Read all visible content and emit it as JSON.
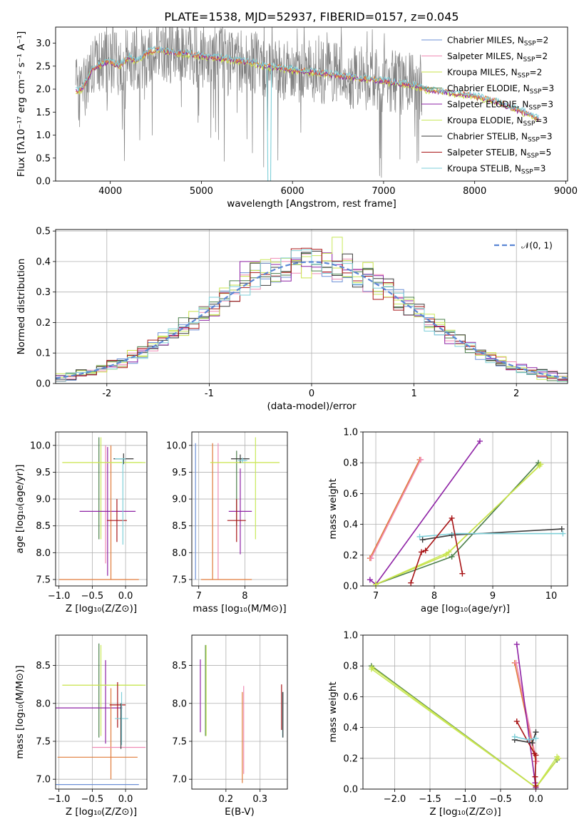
{
  "figure_title": "PLATE=1538, MJD=52937, FIBERID=0157, z=0.045",
  "colors": {
    "chabrier_miles": "#6b8fd6",
    "salpeter_miles": "#f08bb5",
    "kroupa_miles": "#c9e34a",
    "chabrier_elodie": "#4a7f4a",
    "salpeter_elodie": "#8e22a5",
    "kroupa_elodie": "#c8e85a",
    "chabrier_stelib": "#3a3a3a",
    "salpeter_stelib": "#a81416",
    "kroupa_stelib": "#7ecfd8",
    "data": "#808080",
    "orange": "#e07b3a",
    "normal": "#5b86d4"
  },
  "chart_data": [
    {
      "type": "line",
      "id": "spectrum",
      "title": "PLATE=1538, MJD=52937, FIBERID=0157, z=0.045",
      "xlabel": "wavelength [Angstrom, rest frame]",
      "ylabel": "Flux [fλ10⁻¹⁷ erg cm⁻² s⁻¹ A⁻¹]",
      "xlim": [
        3400,
        9020
      ],
      "ylim": [
        0,
        3.35
      ],
      "xticks": [
        4000,
        5000,
        6000,
        7000,
        8000,
        9000
      ],
      "yticks": [
        0.0,
        0.5,
        1.0,
        1.5,
        2.0,
        2.5,
        3.0
      ],
      "legend": [
        {
          "label": "Chabrier MILES, N",
          "sub": "SSP",
          "suffix": "=2",
          "color_key": "chabrier_miles"
        },
        {
          "label": "Salpeter MILES, N",
          "sub": "SSP",
          "suffix": "=2",
          "color_key": "salpeter_miles"
        },
        {
          "label": "Kroupa MILES, N",
          "sub": "SSP",
          "suffix": "=2",
          "color_key": "kroupa_miles"
        },
        {
          "label": "Chabrier ELODIE, N",
          "sub": "SSP",
          "suffix": "=3",
          "color_key": "chabrier_elodie"
        },
        {
          "label": "Salpeter ELODIE, N",
          "sub": "SSP",
          "suffix": "=3",
          "color_key": "salpeter_elodie"
        },
        {
          "label": "Kroupa ELODIE, N",
          "sub": "SSP",
          "suffix": "=3",
          "color_key": "kroupa_elodie"
        },
        {
          "label": "Chabrier STELIB, N",
          "sub": "SSP",
          "suffix": "=3",
          "color_key": "chabrier_stelib"
        },
        {
          "label": "Salpeter STELIB, N",
          "sub": "SSP",
          "suffix": "=5",
          "color_key": "salpeter_stelib"
        },
        {
          "label": "Kroupa STELIB, N",
          "sub": "SSP",
          "suffix": "=3",
          "color_key": "kroupa_stelib"
        }
      ],
      "legend_placement": "upper right",
      "model_curve": {
        "x": [
          3620,
          3700,
          3800,
          3900,
          4000,
          4100,
          4200,
          4300,
          4400,
          4500,
          4700,
          4900,
          5100,
          5300,
          5500,
          5700,
          5900,
          6100,
          6300,
          6500,
          6700,
          6900,
          7100,
          7300,
          7450,
          7600,
          7800,
          8000,
          8200,
          8400,
          8600,
          8700
        ],
        "y": [
          1.95,
          2.02,
          2.45,
          2.55,
          2.6,
          2.5,
          2.7,
          2.6,
          2.8,
          2.85,
          2.8,
          2.75,
          2.7,
          2.65,
          2.6,
          2.5,
          2.45,
          2.4,
          2.35,
          2.3,
          2.25,
          2.2,
          2.15,
          2.1,
          2.0,
          1.95,
          1.9,
          1.85,
          1.75,
          1.6,
          1.45,
          1.35
        ]
      }
    },
    {
      "type": "histogram",
      "id": "residuals",
      "xlabel": "(data-model)/error",
      "ylabel": "Normed distribution",
      "xlim": [
        -2.5,
        2.5
      ],
      "ylim": [
        0,
        0.505
      ],
      "xticks": [
        -2,
        -1,
        0,
        1,
        2
      ],
      "yticks": [
        0.0,
        0.1,
        0.2,
        0.3,
        0.4,
        0.5
      ],
      "grid": true,
      "legend": [
        {
          "label": "𝒩(0, 1)",
          "color_key": "normal"
        }
      ],
      "legend_placement": "upper right"
    },
    {
      "type": "scatter",
      "id": "age_vs_z",
      "xlabel": "Z [log₁₀(Z/Z⊙)]",
      "ylabel": "age  [log₁₀(age/yr)]",
      "xlim": [
        -1.05,
        0.32
      ],
      "ylim": [
        7.38,
        10.25
      ],
      "xticks": [
        -1.0,
        -0.5,
        0.0
      ],
      "yticks": [
        7.5,
        8.0,
        8.5,
        9.0,
        9.5,
        10.0
      ],
      "grid": true,
      "errorbars": [
        {
          "x": -0.4,
          "y": 9.2,
          "xerr": 0.0,
          "yerr": 0.95,
          "color_key": "chabrier_elodie"
        },
        {
          "x": -0.37,
          "y": 9.2,
          "xerr": 0.0,
          "yerr": 0.95,
          "color_key": "kroupa_elodie"
        },
        {
          "x": -0.3,
          "y": 8.9,
          "xerr": 0.0,
          "yerr": 1.1,
          "color_key": "salpeter_miles"
        },
        {
          "x": -0.27,
          "y": 8.77,
          "xerr": 0.42,
          "yerr": 1.2,
          "color_key": "salpeter_elodie"
        },
        {
          "x": -0.22,
          "y": 8.75,
          "xerr": 0.0,
          "yerr": 1.25,
          "color_key": "orange"
        },
        {
          "x": -0.35,
          "y": 9.68,
          "xerr": 0.6,
          "yerr": 0.0,
          "color_key": "kroupa_miles"
        },
        {
          "x": -0.05,
          "y": 9.68,
          "xerr": 0.35,
          "yerr": 0.0,
          "color_key": "kroupa_elodie"
        },
        {
          "x": -0.03,
          "y": 9.75,
          "xerr": 0.15,
          "yerr": 0.1,
          "color_key": "chabrier_stelib"
        },
        {
          "x": -0.13,
          "y": 8.6,
          "xerr": 0.15,
          "yerr": 0.4,
          "color_key": "salpeter_stelib"
        },
        {
          "x": -0.08,
          "y": 9.75,
          "xerr": 0.08,
          "yerr": 0.0,
          "color_key": "kroupa_stelib"
        },
        {
          "x": -0.04,
          "y": 8.95,
          "xerr": 0.0,
          "yerr": 0.8,
          "color_key": "kroupa_stelib"
        },
        {
          "x": -0.4,
          "y": 7.5,
          "xerr": 0.6,
          "yerr": 0.0,
          "color_key": "orange"
        }
      ]
    },
    {
      "type": "scatter",
      "id": "age_vs_mass",
      "xlabel": "mass [log₁₀(M/M⊙)]",
      "ylabel": "",
      "xlim": [
        6.85,
        8.92
      ],
      "ylim": [
        7.38,
        10.25
      ],
      "xticks": [
        7,
        8
      ],
      "yticks": [
        7.5,
        8.0,
        8.5,
        9.0,
        9.5,
        10.0
      ],
      "grid": true,
      "errorbars": [
        {
          "x": 6.93,
          "y": 8.77,
          "xerr": 0.0,
          "yerr": 1.27,
          "color_key": "chabrier_miles"
        },
        {
          "x": 7.3,
          "y": 8.77,
          "xerr": 0.0,
          "yerr": 1.27,
          "color_key": "orange"
        },
        {
          "x": 7.42,
          "y": 8.77,
          "xerr": 0.0,
          "yerr": 1.27,
          "color_key": "salpeter_miles"
        },
        {
          "x": 7.6,
          "y": 7.5,
          "xerr": 0.55,
          "yerr": 0.0,
          "color_key": "orange"
        },
        {
          "x": 7.82,
          "y": 9.2,
          "xerr": 0.0,
          "yerr": 0.7,
          "color_key": "chabrier_elodie"
        },
        {
          "x": 7.9,
          "y": 8.77,
          "xerr": 0.25,
          "yerr": 0.8,
          "color_key": "salpeter_elodie"
        },
        {
          "x": 8.0,
          "y": 9.68,
          "xerr": 0.75,
          "yerr": 0.0,
          "color_key": "kroupa_miles"
        },
        {
          "x": 8.23,
          "y": 9.2,
          "xerr": 0.0,
          "yerr": 0.95,
          "color_key": "kroupa_elodie"
        },
        {
          "x": 7.82,
          "y": 8.6,
          "xerr": 0.2,
          "yerr": 0.4,
          "color_key": "salpeter_stelib"
        },
        {
          "x": 7.9,
          "y": 9.75,
          "xerr": 0.2,
          "yerr": 0.08,
          "color_key": "chabrier_stelib"
        },
        {
          "x": 7.95,
          "y": 9.72,
          "xerr": 0.1,
          "yerr": 0.05,
          "color_key": "kroupa_stelib"
        }
      ]
    },
    {
      "type": "line",
      "id": "weight_vs_age",
      "xlabel": "age  [log₁₀(age/yr)]",
      "ylabel": "mass weight",
      "xlim": [
        6.78,
        10.28
      ],
      "ylim": [
        0.0,
        1.0
      ],
      "xticks": [
        7,
        8,
        9,
        10
      ],
      "yticks": [
        0.0,
        0.2,
        0.4,
        0.6,
        0.8,
        1.0
      ],
      "grid": true,
      "series": [
        {
          "color_key": "orange",
          "x": [
            6.9,
            7.75
          ],
          "y": [
            0.18,
            0.82
          ]
        },
        {
          "color_key": "salpeter_miles",
          "x": [
            6.92,
            7.77
          ],
          "y": [
            0.18,
            0.82
          ]
        },
        {
          "color_key": "salpeter_elodie",
          "x": [
            6.9,
            7.0,
            8.78
          ],
          "y": [
            0.04,
            0.01,
            0.94
          ]
        },
        {
          "color_key": "chabrier_elodie",
          "x": [
            7.0,
            8.3,
            9.78
          ],
          "y": [
            0.01,
            0.19,
            0.8
          ]
        },
        {
          "color_key": "kroupa_elodie",
          "x": [
            7.0,
            8.25,
            9.8
          ],
          "y": [
            0.01,
            0.22,
            0.78
          ]
        },
        {
          "color_key": "kroupa_miles",
          "x": [
            7.0,
            8.2,
            9.82
          ],
          "y": [
            0.01,
            0.2,
            0.79
          ]
        },
        {
          "color_key": "chabrier_stelib",
          "x": [
            7.8,
            8.3,
            10.18
          ],
          "y": [
            0.3,
            0.33,
            0.37
          ]
        },
        {
          "color_key": "kroupa_stelib",
          "x": [
            7.75,
            8.35,
            10.2
          ],
          "y": [
            0.32,
            0.34,
            0.34
          ]
        },
        {
          "color_key": "salpeter_stelib",
          "x": [
            7.6,
            7.78,
            7.85,
            8.3,
            8.48
          ],
          "y": [
            0.02,
            0.22,
            0.23,
            0.44,
            0.08
          ]
        }
      ]
    },
    {
      "type": "scatter",
      "id": "mass_vs_z",
      "xlabel": "Z [log₁₀(Z/Z⊙)]",
      "ylabel": "mass [log₁₀(M/M⊙)]",
      "xlim": [
        -1.05,
        0.32
      ],
      "ylim": [
        6.87,
        8.9
      ],
      "xticks": [
        -1.0,
        -0.5,
        0.0
      ],
      "yticks": [
        7.0,
        7.5,
        8.0,
        8.5
      ],
      "grid": true,
      "errorbars": [
        {
          "x": -0.4,
          "y": 8.17,
          "xerr": 0.0,
          "yerr": 0.62,
          "color_key": "chabrier_elodie"
        },
        {
          "x": -0.37,
          "y": 8.17,
          "xerr": 0.0,
          "yerr": 0.6,
          "color_key": "kroupa_elodie"
        },
        {
          "x": -0.3,
          "y": 8.02,
          "xerr": 0.0,
          "yerr": 0.55,
          "color_key": "salpeter_elodie"
        },
        {
          "x": -0.35,
          "y": 8.24,
          "xerr": 0.6,
          "yerr": 0.0,
          "color_key": "kroupa_miles"
        },
        {
          "x": -0.05,
          "y": 8.24,
          "xerr": 0.35,
          "yerr": 0.0,
          "color_key": "kroupa_elodie"
        },
        {
          "x": -0.55,
          "y": 7.94,
          "xerr": 0.5,
          "yerr": 0.0,
          "color_key": "salpeter_elodie"
        },
        {
          "x": -0.22,
          "y": 7.6,
          "xerr": 0.0,
          "yerr": 0.6,
          "color_key": "orange"
        },
        {
          "x": -0.1,
          "y": 7.42,
          "xerr": 0.4,
          "yerr": 0.0,
          "color_key": "salpeter_miles"
        },
        {
          "x": -0.42,
          "y": 7.29,
          "xerr": 0.6,
          "yerr": 0.0,
          "color_key": "orange"
        },
        {
          "x": -0.45,
          "y": 6.93,
          "xerr": 0.65,
          "yerr": 0.0,
          "color_key": "chabrier_miles"
        },
        {
          "x": -0.12,
          "y": 7.98,
          "xerr": 0.12,
          "yerr": 0.3,
          "color_key": "salpeter_stelib"
        },
        {
          "x": -0.06,
          "y": 7.8,
          "xerr": 0.1,
          "yerr": 0.35,
          "color_key": "kroupa_stelib"
        },
        {
          "x": -0.07,
          "y": 7.7,
          "xerr": 0.0,
          "yerr": 0.3,
          "color_key": "chabrier_stelib"
        }
      ]
    },
    {
      "type": "scatter",
      "id": "mass_vs_ebv",
      "xlabel": "E(B-V)",
      "ylabel": "",
      "xlim": [
        0.1,
        0.38
      ],
      "ylim": [
        6.87,
        8.9
      ],
      "xticks": [
        0.2,
        0.3
      ],
      "yticks": [
        7.0,
        7.5,
        8.0,
        8.5
      ],
      "grid": true,
      "errorbars": [
        {
          "x": 0.125,
          "y": 8.1,
          "xerr": 0.0,
          "yerr": 0.48,
          "color_key": "salpeter_elodie"
        },
        {
          "x": 0.14,
          "y": 8.17,
          "xerr": 0.0,
          "yerr": 0.6,
          "color_key": "chabrier_elodie"
        },
        {
          "x": 0.142,
          "y": 8.17,
          "xerr": 0.0,
          "yerr": 0.6,
          "color_key": "kroupa_elodie"
        },
        {
          "x": 0.248,
          "y": 7.55,
          "xerr": 0.0,
          "yerr": 0.6,
          "color_key": "orange"
        },
        {
          "x": 0.252,
          "y": 7.65,
          "xerr": 0.0,
          "yerr": 0.58,
          "color_key": "salpeter_miles"
        },
        {
          "x": 0.363,
          "y": 7.95,
          "xerr": 0.0,
          "yerr": 0.3,
          "color_key": "salpeter_stelib"
        },
        {
          "x": 0.366,
          "y": 7.85,
          "xerr": 0.0,
          "yerr": 0.3,
          "color_key": "kroupa_stelib"
        },
        {
          "x": 0.367,
          "y": 7.85,
          "xerr": 0.0,
          "yerr": 0.3,
          "color_key": "chabrier_stelib"
        }
      ]
    },
    {
      "type": "line",
      "id": "weight_vs_z",
      "xlabel": "Z [log₁₀(Z/Z⊙)]",
      "ylabel": "mass weight",
      "xlim": [
        -2.45,
        0.45
      ],
      "ylim": [
        0.0,
        1.0
      ],
      "xticks": [
        -2.0,
        -1.5,
        -1.0,
        -0.5,
        0.0
      ],
      "yticks": [
        0.0,
        0.2,
        0.4,
        0.6,
        0.8,
        1.0
      ],
      "grid": true,
      "series": [
        {
          "color_key": "chabrier_elodie",
          "x": [
            -2.33,
            0.0,
            0.3
          ],
          "y": [
            0.8,
            0.01,
            0.19
          ]
        },
        {
          "color_key": "kroupa_elodie",
          "x": [
            -2.33,
            0.0,
            0.3
          ],
          "y": [
            0.78,
            0.01,
            0.21
          ]
        },
        {
          "color_key": "kroupa_miles",
          "x": [
            -2.32,
            0.0,
            0.32
          ],
          "y": [
            0.79,
            0.01,
            0.2
          ]
        },
        {
          "color_key": "orange",
          "x": [
            -0.3,
            0.0
          ],
          "y": [
            0.82,
            0.18
          ]
        },
        {
          "color_key": "salpeter_miles",
          "x": [
            -0.28,
            0.01
          ],
          "y": [
            0.82,
            0.18
          ]
        },
        {
          "color_key": "salpeter_elodie",
          "x": [
            -0.27,
            -0.01,
            0.0
          ],
          "y": [
            0.94,
            0.04,
            0.01
          ]
        },
        {
          "color_key": "salpeter_stelib",
          "x": [
            -0.27,
            -0.02,
            0.0,
            -0.01,
            0.0
          ],
          "y": [
            0.44,
            0.23,
            0.22,
            0.08,
            0.02
          ]
        },
        {
          "color_key": "chabrier_stelib",
          "x": [
            -0.3,
            -0.05,
            0.0
          ],
          "y": [
            0.32,
            0.3,
            0.37
          ]
        },
        {
          "color_key": "kroupa_stelib",
          "x": [
            -0.3,
            -0.1,
            0.0
          ],
          "y": [
            0.34,
            0.32,
            0.33
          ]
        }
      ]
    }
  ]
}
